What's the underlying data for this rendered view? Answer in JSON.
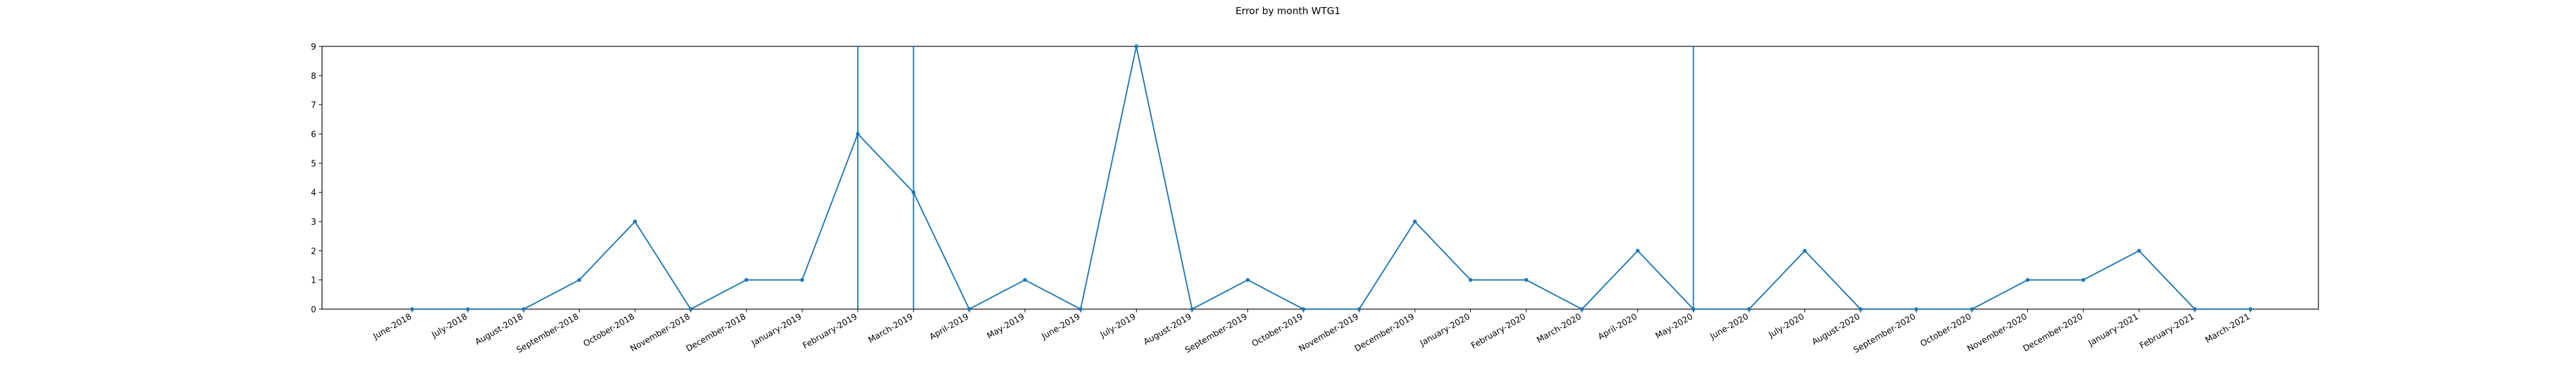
{
  "chart_data": {
    "type": "line",
    "title": "Error by month WTG1",
    "xlabel": "",
    "ylabel": "",
    "ylim": [
      0,
      9
    ],
    "yticks": [
      0,
      1,
      2,
      3,
      4,
      5,
      6,
      7,
      8,
      9
    ],
    "grid": false,
    "legend": "none",
    "categories": [
      "June-2018",
      "July-2018",
      "August-2018",
      "September-2018",
      "October-2018",
      "November-2018",
      "December-2018",
      "January-2019",
      "February-2019",
      "March-2019",
      "April-2019",
      "May-2019",
      "June-2019",
      "July-2019",
      "August-2019",
      "September-2019",
      "October-2019",
      "November-2019",
      "December-2019",
      "January-2020",
      "February-2020",
      "March-2020",
      "April-2020",
      "May-2020",
      "June-2020",
      "July-2020",
      "August-2020",
      "September-2020",
      "October-2020",
      "November-2020",
      "December-2020",
      "January-2021",
      "February-2021",
      "March-2021"
    ],
    "values": [
      0,
      0,
      0,
      1,
      3,
      0,
      1,
      1,
      6,
      4,
      0,
      1,
      0,
      9,
      0,
      1,
      0,
      0,
      3,
      1,
      1,
      0,
      2,
      0,
      0,
      2,
      0,
      0,
      0,
      1,
      1,
      2,
      0,
      0
    ],
    "vertical_lines_at": [
      "February-2019",
      "March-2019",
      "May-2020"
    ],
    "colors": {
      "series": "#1f77b4",
      "axes": "#000000"
    }
  }
}
